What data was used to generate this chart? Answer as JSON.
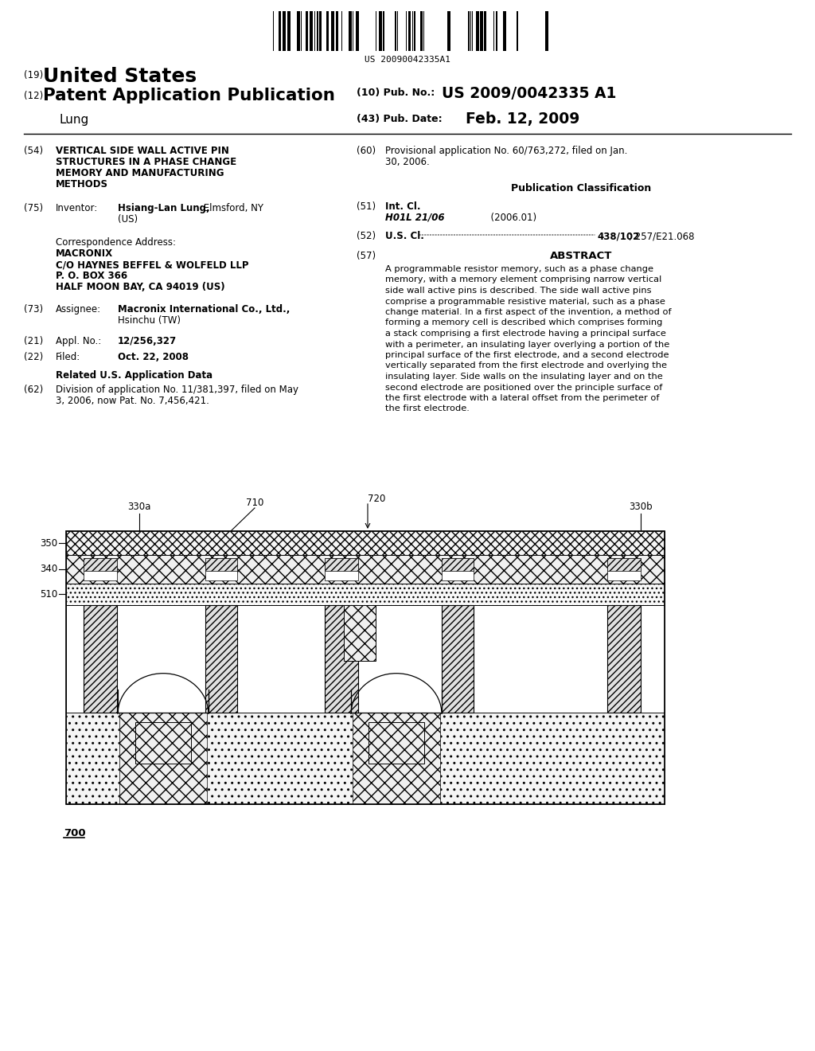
{
  "barcode_text": "US 20090042335A1",
  "pub_no_value": "US 2009/0042335 A1",
  "pub_date_value": "Feb. 12, 2009",
  "abstract_text": "A programmable resistor memory, such as a phase change memory, with a memory element comprising narrow vertical side wall active pins is described. The side wall active pins comprise a programmable resistive material, such as a phase change material. In a first aspect of the invention, a method of forming a memory cell is described which comprises forming a stack comprising a first electrode having a principal surface with a perimeter, an insulating layer overlying a portion of the principal surface of the first electrode, and a second electrode vertically separated from the first electrode and overlying the insulating layer. Side walls on the insulating layer and on the second electrode are positioned over the principle surface of the first electrode with a lateral offset from the perimeter of the first electrode.",
  "bg_color": "#ffffff"
}
